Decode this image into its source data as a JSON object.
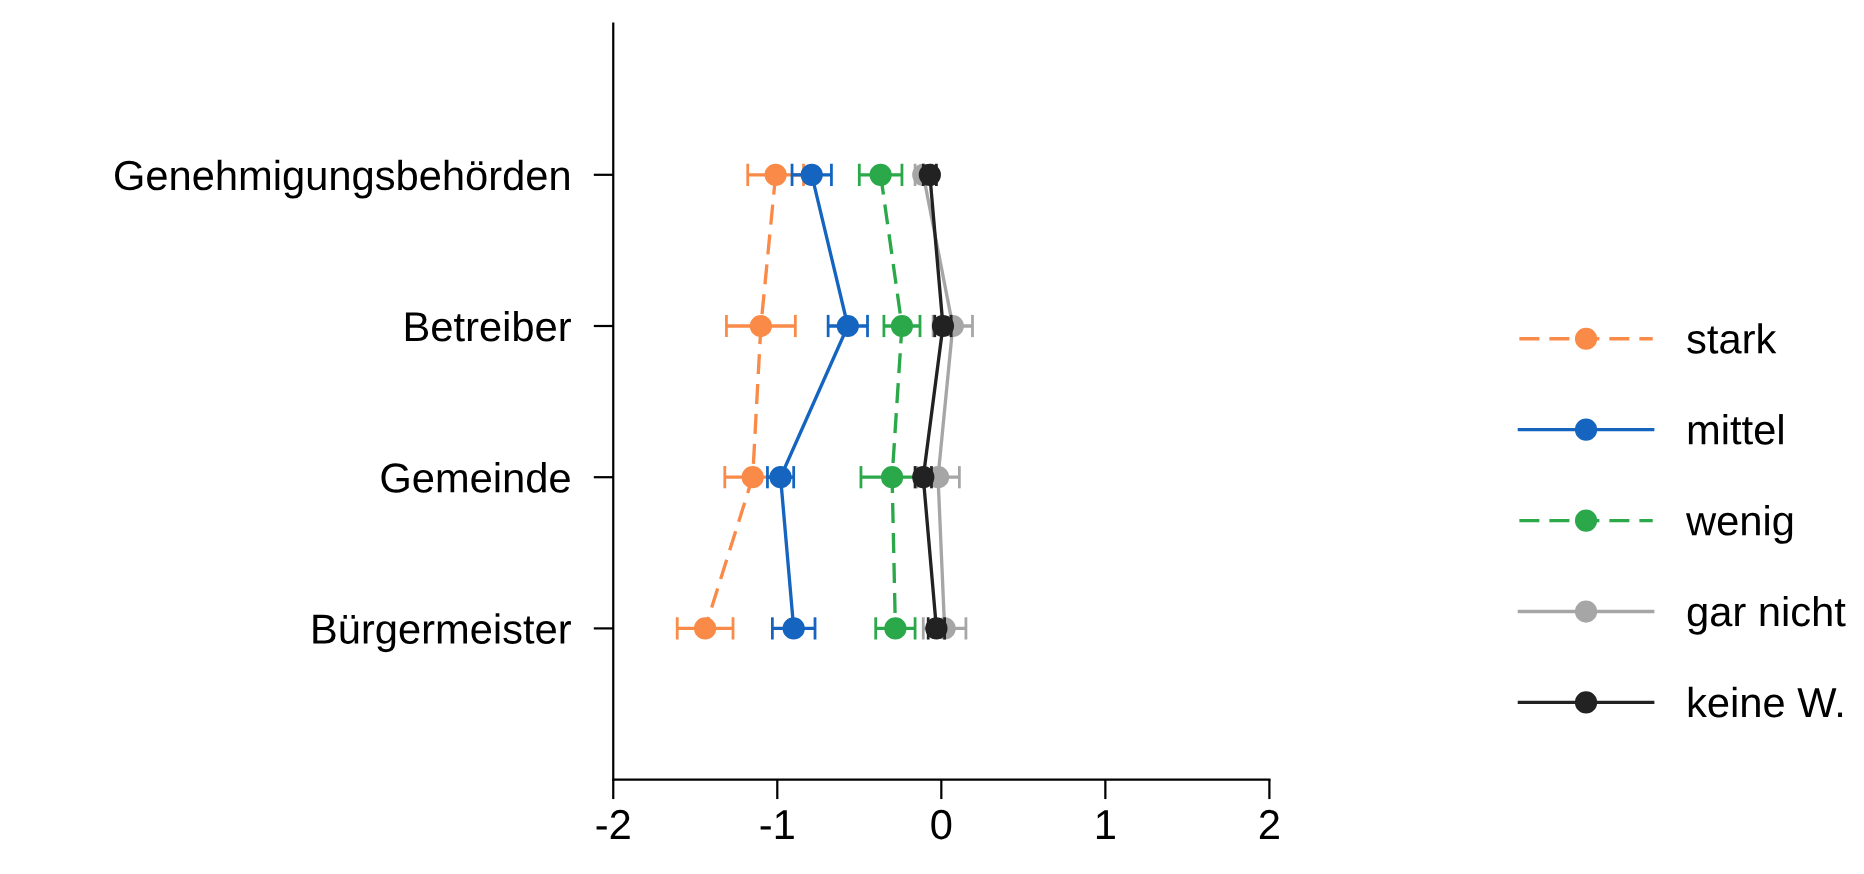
{
  "chart_data": {
    "type": "line",
    "orientation": "horizontal",
    "categories": [
      "Genehmigungsbehörden",
      "Betreiber",
      "Gemeinde",
      "Bürgermeister"
    ],
    "xlim": [
      -2,
      2
    ],
    "xticks": [
      -2,
      -1,
      0,
      1,
      2
    ],
    "grid": false,
    "legend": "right",
    "marker": "circle",
    "series": [
      {
        "name": "stark",
        "color": "#f98a47",
        "line_style": "dashed",
        "values": [
          -1.01,
          -1.1,
          -1.15,
          -1.44
        ],
        "errors": [
          0.17,
          0.21,
          0.17,
          0.17
        ]
      },
      {
        "name": "mittel",
        "color": "#1565c0",
        "line_style": "solid",
        "values": [
          -0.79,
          -0.57,
          -0.98,
          -0.9
        ],
        "errors": [
          0.12,
          0.12,
          0.08,
          0.13
        ]
      },
      {
        "name": "wenig",
        "color": "#2aa84a",
        "line_style": "dashed",
        "values": [
          -0.37,
          -0.24,
          -0.3,
          -0.28
        ],
        "errors": [
          0.13,
          0.11,
          0.19,
          0.12
        ]
      },
      {
        "name": "gar nicht",
        "color": "#a6a6a6",
        "line_style": "solid",
        "values": [
          -0.11,
          0.07,
          -0.02,
          0.02
        ],
        "errors": [
          0.05,
          0.12,
          0.13,
          0.13
        ]
      },
      {
        "name": "keine W.",
        "color": "#222222",
        "line_style": "solid",
        "values": [
          -0.07,
          0.01,
          -0.11,
          -0.03
        ],
        "errors": [
          0.04,
          0.05,
          0.05,
          0.05
        ]
      }
    ]
  }
}
